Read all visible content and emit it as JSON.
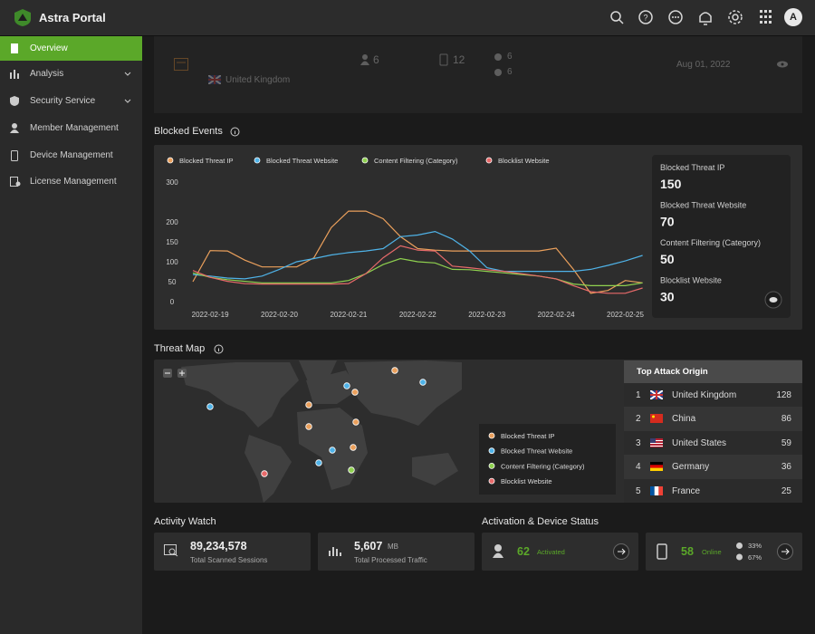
{
  "header": {
    "title": "Astra Portal",
    "avatar": "A"
  },
  "sidebar": {
    "items": [
      "Overview",
      "Analysis",
      "Security Service",
      "Member Management",
      "Device Management",
      "License Management"
    ]
  },
  "recent_device": {
    "location": "United Kingdom",
    "members": 6,
    "devices": 12,
    "os_counts": [
      6,
      6
    ],
    "date": "Aug 01, 2022"
  },
  "chart_data": {
    "type": "line",
    "title": "Blocked Events",
    "categories": [
      null,
      "2022-02-19",
      null,
      null,
      null,
      "2022-02-20",
      null,
      null,
      null,
      "2022-02-21",
      null,
      null,
      null,
      "2022-02-22",
      null,
      null,
      null,
      "2022-02-23",
      null,
      null,
      null,
      "2022-02-24",
      null,
      null,
      null,
      "2022-02-25",
      null
    ],
    "ylim": [
      0,
      300
    ],
    "yticks": [
      0,
      50,
      100,
      150,
      200,
      300
    ],
    "series": [
      {
        "name": "Blocked Threat IP",
        "color": "#eba05c",
        "total": 150,
        "values": [
          50,
          128,
          127,
          104,
          87,
          87,
          87,
          110,
          186,
          227,
          227,
          208,
          163,
          133,
          129,
          127,
          127,
          127,
          127,
          127,
          127,
          134,
          81,
          21,
          28,
          53,
          47
        ]
      },
      {
        "name": "Blocked Threat Website",
        "color": "#4fb3e8",
        "total": 70,
        "values": [
          68,
          64,
          59,
          57,
          64,
          81,
          100,
          108,
          117,
          123,
          127,
          133,
          163,
          167,
          176,
          157,
          127,
          85,
          76,
          76,
          76,
          76,
          76,
          81,
          91,
          102,
          116
        ]
      },
      {
        "name": "Content Filtering (Category)",
        "color": "#8fd14f",
        "total": 50,
        "values": [
          72,
          61,
          55,
          51,
          47,
          47,
          47,
          47,
          47,
          53,
          70,
          93,
          108,
          100,
          97,
          81,
          80,
          76,
          72,
          68,
          64,
          57,
          44,
          40,
          40,
          40,
          47
        ]
      },
      {
        "name": "Blocklist Website",
        "color": "#e86a6a",
        "total": 30,
        "values": [
          78,
          61,
          51,
          45,
          44,
          44,
          44,
          44,
          44,
          45,
          70,
          110,
          140,
          129,
          127,
          89,
          85,
          80,
          76,
          70,
          64,
          57,
          40,
          25,
          21,
          21,
          34
        ]
      }
    ]
  },
  "threat_map": {
    "title": "Threat Map",
    "top_origin": {
      "title": "Top Attack Origin",
      "rows": [
        {
          "rank": 1,
          "country": "United Kingdom",
          "count": 128
        },
        {
          "rank": 2,
          "country": "China",
          "count": 86
        },
        {
          "rank": 3,
          "country": "United States",
          "count": 59
        },
        {
          "rank": 4,
          "country": "Germany",
          "count": 36
        },
        {
          "rank": 5,
          "country": "France",
          "count": 25
        }
      ]
    }
  },
  "activity_watch": {
    "title": "Activity Watch",
    "scanned": {
      "value": "89,234,578",
      "label": "Total Scanned Sessions"
    },
    "traffic": {
      "value": "5,607",
      "unit": "MB",
      "label": "Total Processed Traffic"
    }
  },
  "device_status": {
    "title": "Activation & Device Status",
    "activated": {
      "value": 62,
      "label": "Activated"
    },
    "online": {
      "value": 58,
      "label": "Online",
      "shares": [
        "33%",
        "67%"
      ]
    }
  }
}
